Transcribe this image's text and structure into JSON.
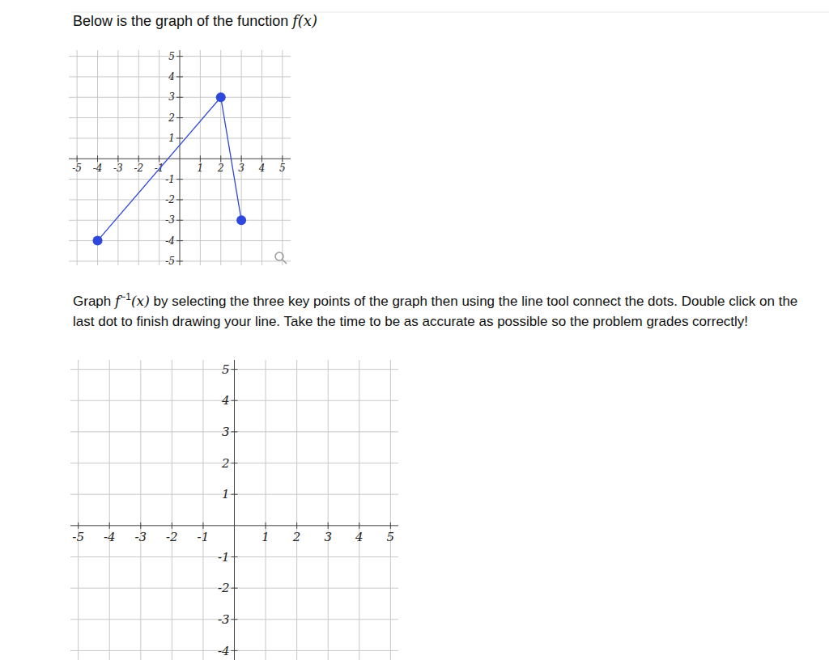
{
  "document": {
    "intro": {
      "text": "Below is the graph of the function",
      "math": "f(x)"
    },
    "instruction": {
      "lead": "Graph",
      "math": "f",
      "sup": "−1",
      "math_arg": "(x)",
      "text": "by selecting the three key points of the graph then using the line tool connect the dots. Double click on the last dot to finish drawing your line. Take the time to be as accurate as possible so the problem grades correctly!"
    }
  },
  "chart_data": [
    {
      "type": "line",
      "x": [
        -4,
        2,
        3
      ],
      "values": [
        -4,
        3,
        -3
      ],
      "color": "#2f48dc",
      "marker": "circle",
      "xlim": [
        -5.4,
        5.4
      ],
      "ylim": [
        -5.2,
        5.3
      ],
      "xticks": [
        -5,
        -4,
        -3,
        -2,
        -1,
        1,
        2,
        3,
        4,
        5
      ],
      "yticks": [
        -5,
        -4,
        -3,
        -2,
        -1,
        1,
        2,
        3,
        4,
        5
      ],
      "grid": true
    },
    {
      "type": "grid",
      "xlim": [
        -5.25,
        5.25
      ],
      "ylim": [
        -4.3,
        5.3
      ],
      "xticks": [
        -5,
        -4,
        -3,
        -2,
        -1,
        1,
        2,
        3,
        4,
        5
      ],
      "yticks": [
        -4,
        -3,
        -2,
        -1,
        1,
        2,
        3,
        4,
        5
      ],
      "grid": true
    }
  ]
}
